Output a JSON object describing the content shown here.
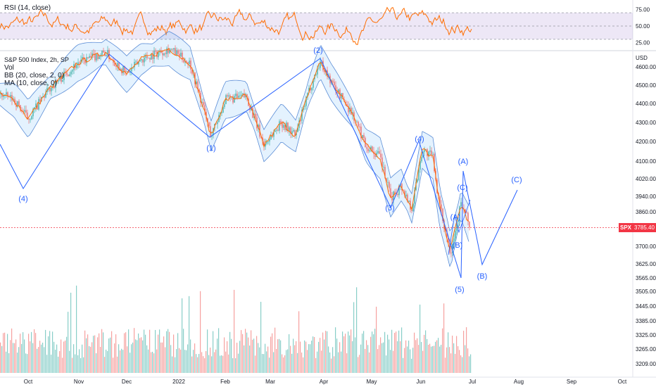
{
  "rsi_panel": {
    "label": "RSI (14, close)",
    "ticks": [
      75.0,
      50.0,
      25.0
    ],
    "tick_labels": [
      "75.00",
      "50.00",
      "25.00"
    ],
    "band_upper": 70,
    "band_lower": 30,
    "ylim": [
      15,
      85
    ]
  },
  "price_panel": {
    "title": "S&P 500 Index, 2h, SP",
    "indicators": [
      "Vol",
      "BB (20, close, 2, 0)",
      "MA (10, close, 0)"
    ],
    "currency": "USD",
    "last_symbol": "SPX",
    "last_value": "3785.40"
  },
  "chart_data": {
    "type": "line",
    "xlabel": "",
    "ylabel": "",
    "x_ticks": [
      "Oct",
      "Nov",
      "Dec",
      "2022",
      "Feb",
      "Mar",
      "Apr",
      "May",
      "Jun",
      "Jul",
      "Aug",
      "Sep",
      "Oct"
    ],
    "y_tick_labels": [
      "4600.00",
      "4500.00",
      "4400.00",
      "4300.00",
      "4200.00",
      "4100.00",
      "4020.00",
      "3940.00",
      "3860.00",
      "3785.00",
      "3700.00",
      "3625.00",
      "3565.00",
      "3505.00",
      "3445.00",
      "3385.00",
      "3325.00",
      "3265.00",
      "3209.00"
    ],
    "wave_labels": [
      "(4)",
      "(1)",
      "(2)",
      "(3)",
      "(4)",
      "(5)",
      "(A)",
      "(B)",
      "(C)",
      "(A)",
      "(B)",
      "(C)"
    ],
    "colors": {
      "bull": "#26a69a",
      "bear": "#ef5350",
      "bb": "#5b8dd6",
      "bb_fill": "rgba(33,150,243,0.12)",
      "ma": "#ff6d00",
      "rsi": "#ff6d00",
      "rsi_band": "rgba(126,87,194,0.14)",
      "wave": "#2962ff",
      "last_price": "#f23645"
    }
  }
}
